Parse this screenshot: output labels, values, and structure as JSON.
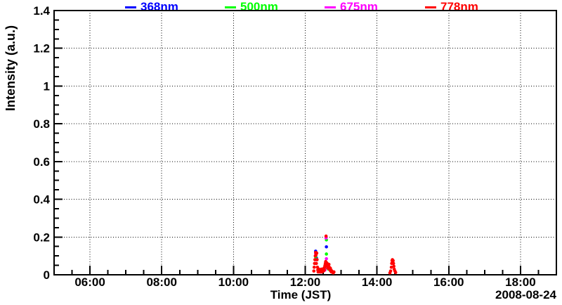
{
  "chart_data": {
    "type": "scatter",
    "title": "",
    "xlabel": "Time (JST)",
    "ylabel": "Intensity (a.u.)",
    "date_annotation": "2008-08-24",
    "xlim": [
      5,
      19
    ],
    "ylim": [
      0,
      1.4
    ],
    "x_units": "hours JST",
    "x_ticks": [
      {
        "value": 6,
        "label": "06:00"
      },
      {
        "value": 8,
        "label": "08:00"
      },
      {
        "value": 10,
        "label": "10:00"
      },
      {
        "value": 12,
        "label": "12:00"
      },
      {
        "value": 14,
        "label": "14:00"
      },
      {
        "value": 16,
        "label": "16:00"
      },
      {
        "value": 18,
        "label": "18:00"
      }
    ],
    "y_ticks": [
      {
        "value": 0,
        "label": "0"
      },
      {
        "value": 0.2,
        "label": "0.2"
      },
      {
        "value": 0.4,
        "label": "0.4"
      },
      {
        "value": 0.6,
        "label": "0.6"
      },
      {
        "value": 0.8,
        "label": "0.8"
      },
      {
        "value": 1,
        "label": "1"
      },
      {
        "value": 1.2,
        "label": "1.2"
      },
      {
        "value": 1.4,
        "label": "1.4"
      }
    ],
    "x_minor_step": 0.5,
    "y_minor_step": 0.05,
    "grid": "dotted-at-major-ticks",
    "legend_position": "top",
    "frame_color": "#000000",
    "series": [
      {
        "name": "368nm",
        "color": "#0000ff",
        "points": [
          [
            12.29,
            0.125
          ],
          [
            12.31,
            0.09
          ],
          [
            12.44,
            0.015
          ],
          [
            12.57,
            0.05
          ],
          [
            12.59,
            0.148
          ]
        ]
      },
      {
        "name": "500nm",
        "color": "#00ff00",
        "points": [
          [
            12.29,
            0.095
          ],
          [
            12.46,
            0.02
          ],
          [
            12.56,
            0.035
          ],
          [
            12.59,
            0.185
          ],
          [
            12.59,
            0.11
          ],
          [
            12.61,
            0.06
          ],
          [
            12.65,
            0.03
          ]
        ]
      },
      {
        "name": "675nm",
        "color": "#ff00ff",
        "points": [
          [
            12.29,
            0.112
          ],
          [
            12.3,
            0.08
          ],
          [
            12.55,
            0.025
          ],
          [
            12.58,
            0.195
          ],
          [
            12.59,
            0.085
          ],
          [
            12.61,
            0.04
          ]
        ]
      },
      {
        "name": "778nm",
        "color": "#ff0000",
        "points": [
          [
            12.24,
            0.02
          ],
          [
            12.25,
            0.04
          ],
          [
            12.26,
            0.06
          ],
          [
            12.27,
            0.08
          ],
          [
            12.28,
            0.1
          ],
          [
            12.29,
            0.118
          ],
          [
            12.3,
            0.105
          ],
          [
            12.31,
            0.06
          ],
          [
            12.32,
            0.115
          ],
          [
            12.33,
            0.08
          ],
          [
            12.34,
            0.04
          ],
          [
            12.35,
            0.025
          ],
          [
            12.36,
            0.015
          ],
          [
            12.37,
            0.02
          ],
          [
            12.38,
            0.03
          ],
          [
            12.39,
            0.02
          ],
          [
            12.4,
            0.015
          ],
          [
            12.41,
            0.02
          ],
          [
            12.42,
            0.025
          ],
          [
            12.43,
            0.015
          ],
          [
            12.44,
            0.02
          ],
          [
            12.45,
            0.03
          ],
          [
            12.46,
            0.02
          ],
          [
            12.47,
            0.015
          ],
          [
            12.48,
            0.025
          ],
          [
            12.49,
            0.02
          ],
          [
            12.5,
            0.03
          ],
          [
            12.51,
            0.02
          ],
          [
            12.52,
            0.035
          ],
          [
            12.53,
            0.025
          ],
          [
            12.54,
            0.04
          ],
          [
            12.55,
            0.05
          ],
          [
            12.56,
            0.06
          ],
          [
            12.57,
            0.07
          ],
          [
            12.58,
            0.205
          ],
          [
            12.59,
            0.065
          ],
          [
            12.6,
            0.05
          ],
          [
            12.61,
            0.06
          ],
          [
            12.62,
            0.045
          ],
          [
            12.63,
            0.035
          ],
          [
            12.64,
            0.05
          ],
          [
            12.65,
            0.04
          ],
          [
            12.66,
            0.055
          ],
          [
            12.67,
            0.04
          ],
          [
            12.68,
            0.03
          ],
          [
            12.69,
            0.025
          ],
          [
            12.7,
            0.035
          ],
          [
            12.71,
            0.02
          ],
          [
            12.72,
            0.025
          ],
          [
            12.73,
            0.015
          ],
          [
            12.74,
            0.02
          ],
          [
            12.76,
            0.015
          ],
          [
            12.78,
            0.01
          ],
          [
            12.8,
            0.015
          ],
          [
            14.36,
            0.01
          ],
          [
            14.38,
            0.02
          ],
          [
            14.4,
            0.04
          ],
          [
            14.41,
            0.06
          ],
          [
            14.42,
            0.075
          ],
          [
            14.43,
            0.08
          ],
          [
            14.44,
            0.07
          ],
          [
            14.45,
            0.075
          ],
          [
            14.46,
            0.06
          ],
          [
            14.47,
            0.045
          ],
          [
            14.48,
            0.03
          ],
          [
            14.5,
            0.02
          ],
          [
            14.52,
            0.012
          ]
        ]
      }
    ]
  }
}
